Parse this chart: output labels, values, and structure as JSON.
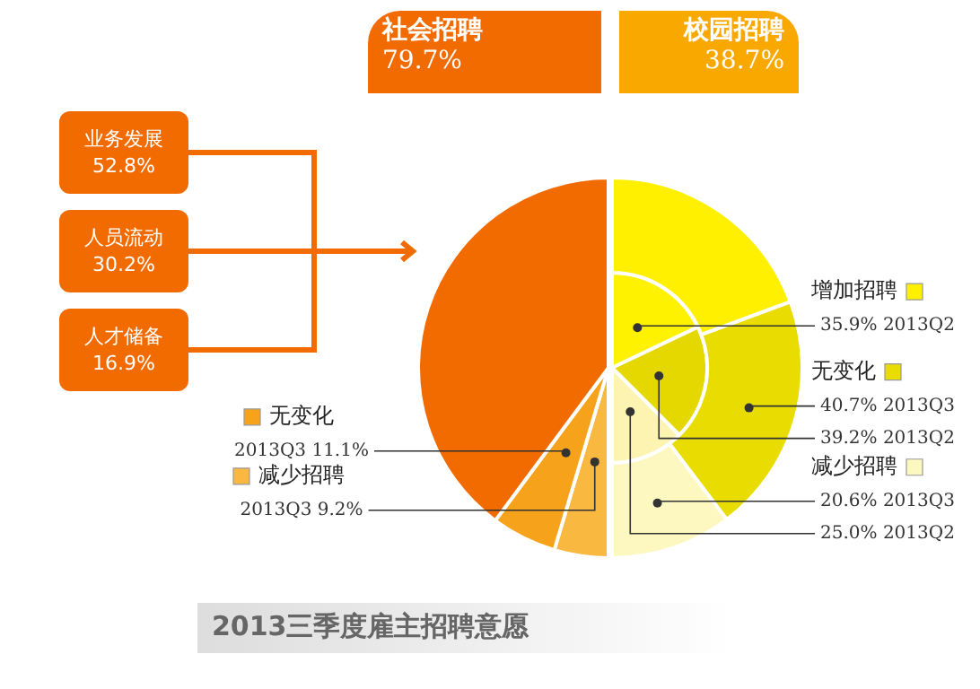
{
  "chart_data": [
    {
      "type": "pie",
      "title": "社会招聘",
      "subtitle": "79.7%",
      "categories": [
        "减少招聘",
        "无变化",
        null
      ],
      "series": [
        {
          "name": "2013Q3",
          "colors": [
            "#f9b840",
            "#f7a21b",
            "#f26b00"
          ],
          "values": [
            9.2,
            11.1,
            79.7
          ],
          "value_labels": [
            "9.2%",
            "11.1%",
            null
          ]
        }
      ],
      "legend": "left",
      "annotations": [
        "业务发展 52.8%",
        "人员流动 30.2%",
        "人才储备 16.9%"
      ]
    },
    {
      "type": "pie",
      "title": "校园招聘",
      "subtitle": "38.7%",
      "legend": "right",
      "categories": [
        "增加招聘",
        "无变化",
        "减少招聘"
      ],
      "series": [
        {
          "name": "2013Q3",
          "colors": [
            "#fff000",
            "#e8dc00",
            "#fdf7c0"
          ],
          "values": [
            38.7,
            40.7,
            20.6
          ],
          "value_labels": [
            null,
            "40.7%",
            "20.6%"
          ]
        },
        {
          "name": "2013Q2",
          "colors": [
            "#fff200",
            "#e5d800",
            "#fcf4b0"
          ],
          "values": [
            35.9,
            39.2,
            25.0
          ],
          "value_labels": [
            "35.9%",
            "39.2%",
            "25.0%"
          ]
        }
      ]
    },
    {
      "type": "other",
      "title": "2013三季度雇主招聘意愿"
    }
  ]
}
